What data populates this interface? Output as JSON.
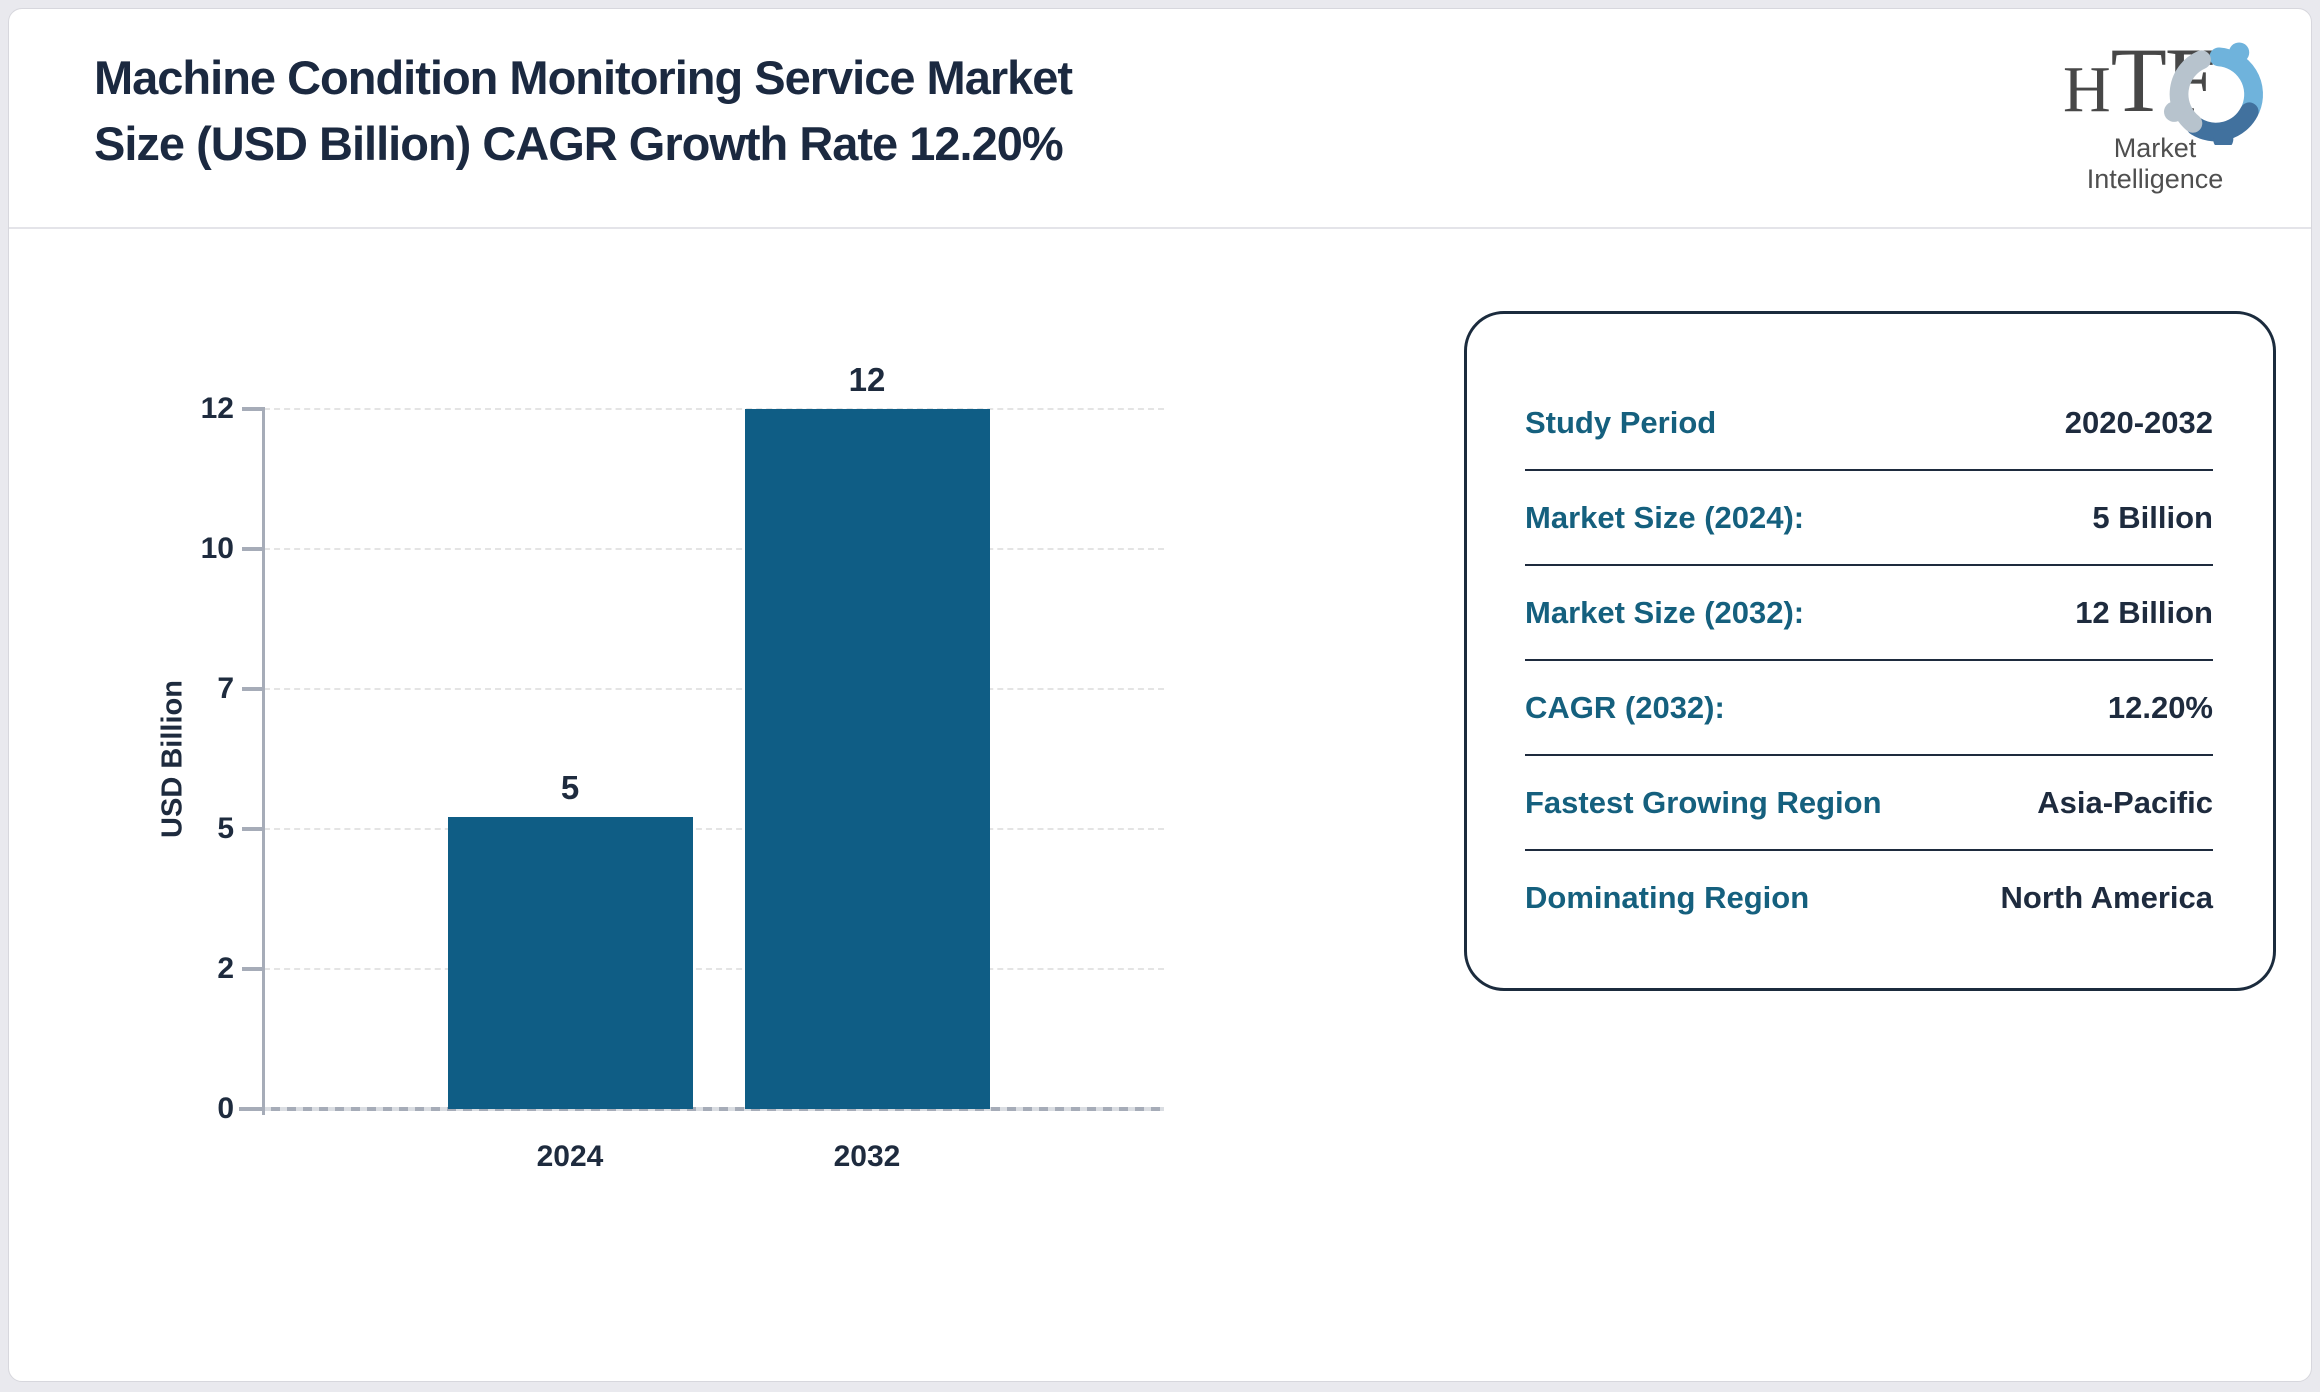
{
  "header": {
    "title_line1": "Machine Condition Monitoring Service Market",
    "title_line2": "Size (USD Billion) CAGR Growth Rate 12.20%",
    "logo": {
      "word_h": "H",
      "word_tf": "TF",
      "subtitle": "Market Intelligence",
      "swirl_colors": [
        "#6fb3dc",
        "#41719e",
        "#b7c3cd"
      ]
    }
  },
  "chart_data": {
    "type": "bar",
    "title": "",
    "categories": [
      "2024",
      "2032"
    ],
    "values": [
      5,
      12
    ],
    "bar_labels": [
      "5",
      "12"
    ],
    "xlabel": "",
    "ylabel": "USD Billion",
    "yticks": [
      0,
      2,
      5,
      7,
      10,
      12
    ],
    "ylim": [
      0,
      12
    ],
    "grid": "horizontal-dashed",
    "legend": "none",
    "bar_color": "#0f5d85",
    "axis_color": "#a6acb8",
    "text_color": "#1e2b3e"
  },
  "info_box": {
    "label_color": "#15607e",
    "value_color": "#1e2b3e",
    "rows": [
      {
        "label": "Study Period",
        "value": "2020-2032"
      },
      {
        "label": "Market Size (2024):",
        "value": "5 Billion"
      },
      {
        "label": "Market Size (2032):",
        "value": "12 Billion"
      },
      {
        "label": "CAGR (2032):",
        "value": "12.20%"
      },
      {
        "label": "Fastest Growing Region",
        "value": "Asia-Pacific"
      },
      {
        "label": "Dominating Region",
        "value": "North America"
      }
    ]
  }
}
